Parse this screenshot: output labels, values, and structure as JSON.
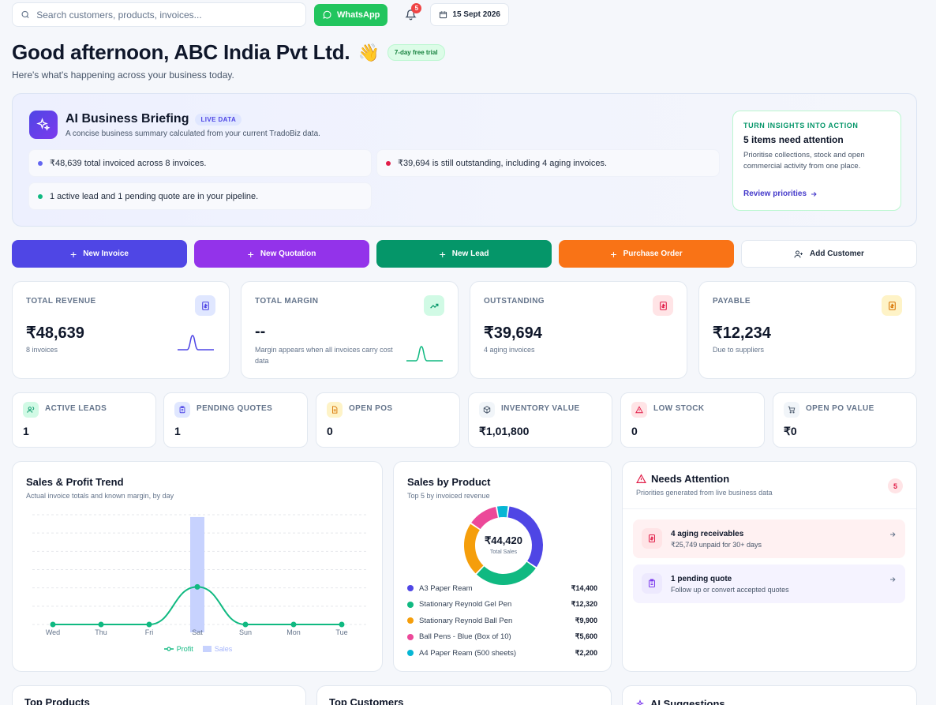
{
  "header": {
    "search_placeholder": "Search customers, products, invoices...",
    "whatsapp_label": "WhatsApp",
    "notification_count": "5",
    "date": "15 Sept 2026"
  },
  "greeting": {
    "title": "Good afternoon, ABC India Pvt Ltd.",
    "emoji": "👋",
    "trial_badge": "7-day free trial",
    "subtitle": "Here's what's happening across your business today."
  },
  "briefing": {
    "title": "AI Business Briefing",
    "badge": "LIVE DATA",
    "subtitle": "A concise business summary calculated from your current TradoBiz data.",
    "insights": [
      {
        "text": "₹48,639 total invoiced across 8 invoices.",
        "color": "#6366f1"
      },
      {
        "text": "₹39,694 is still outstanding, including 4 aging invoices.",
        "color": "#e11d48"
      },
      {
        "text": "1 active lead and 1 pending quote are in your pipeline.",
        "color": "#10b981"
      }
    ],
    "action": {
      "eyebrow": "TURN INSIGHTS INTO ACTION",
      "title": "5 items need attention",
      "text": "Prioritise collections, stock and open commercial activity from one place.",
      "link": "Review priorities"
    }
  },
  "quick_actions": [
    {
      "label": "New Invoice",
      "color": "#4f46e5"
    },
    {
      "label": "New Quotation",
      "color": "#9333ea"
    },
    {
      "label": "New Lead",
      "color": "#059669"
    },
    {
      "label": "Purchase Order",
      "color": "#f97316"
    },
    {
      "label": "Add Customer",
      "color": "#ffffff"
    }
  ],
  "kpis": [
    {
      "label": "TOTAL REVENUE",
      "value": "₹48,639",
      "sub": "8 invoices",
      "color": "#4f46e5",
      "icon_bg": "#e0e7ff",
      "icon": "invoice-icon"
    },
    {
      "label": "TOTAL MARGIN",
      "value": "--",
      "sub": "Margin appears when all invoices carry cost data",
      "color": "#10b981",
      "icon_bg": "#d1fae5",
      "icon": "trend-up-icon"
    },
    {
      "label": "OUTSTANDING",
      "value": "₹39,694",
      "sub": "4 aging invoices",
      "color": "#e11d48",
      "icon_bg": "#ffe4e6",
      "icon": "invoice-icon"
    },
    {
      "label": "PAYABLE",
      "value": "₹12,234",
      "sub": "Due to suppliers",
      "color": "#f59e0b",
      "icon_bg": "#fef3c7",
      "icon": "invoice-icon"
    }
  ],
  "stats": [
    {
      "label": "ACTIVE LEADS",
      "value": "1",
      "color": "#10b981",
      "icon_bg": "#d1fae5",
      "icon": "users-icon"
    },
    {
      "label": "PENDING QUOTES",
      "value": "1",
      "color": "#6366f1",
      "icon_bg": "#e0e7ff",
      "icon": "clipboard-icon"
    },
    {
      "label": "OPEN POS",
      "value": "0",
      "color": "#f59e0b",
      "icon_bg": "#fef3c7",
      "icon": "document-icon"
    },
    {
      "label": "INVENTORY VALUE",
      "value": "₹1,01,800",
      "color": "#475569",
      "icon_bg": "#f1f5f9",
      "icon": "box-icon"
    },
    {
      "label": "LOW STOCK",
      "value": "0",
      "color": "#e11d48",
      "icon_bg": "#ffe4e6",
      "icon": "warning-icon"
    },
    {
      "label": "OPEN PO VALUE",
      "value": "₹0",
      "color": "#475569",
      "icon_bg": "#f1f5f9",
      "icon": "cart-icon"
    }
  ],
  "trend": {
    "title": "Sales & Profit Trend",
    "subtitle": "Actual invoice totals and known margin, by day",
    "legend_profit": "Profit",
    "legend_sales": "Sales"
  },
  "products": {
    "title": "Sales by Product",
    "subtitle": "Top 5 by invoiced revenue",
    "total": "₹44,420",
    "total_label": "Total Sales"
  },
  "attention": {
    "title": "Needs Attention",
    "subtitle": "Priorities generated from live business data",
    "count": "5",
    "items": [
      {
        "title": "4 aging receivables",
        "sub": "₹25,749 unpaid for 30+ days",
        "bg": "#fff1f2",
        "icon_bg": "#ffe4e6",
        "color": "#e11d48",
        "icon": "invoice-icon"
      },
      {
        "title": "1 pending quote",
        "sub": "Follow up or convert accepted quotes",
        "bg": "#f5f3ff",
        "icon_bg": "#ede9fe",
        "color": "#7c3aed",
        "icon": "clipboard-icon"
      }
    ]
  },
  "bottom": {
    "top_products": "Top Products",
    "top_customers": "Top Customers",
    "ai_suggestions": "AI Suggestions"
  },
  "chart_data": [
    {
      "type": "bar",
      "title": "Sales & Profit Trend",
      "categories": [
        "Wed",
        "Thu",
        "Fri",
        "Sat",
        "Sun",
        "Mon",
        "Tue"
      ],
      "series": [
        {
          "name": "Sales",
          "values": [
            0,
            0,
            0,
            48639,
            0,
            0,
            0
          ],
          "color": "#c7d2fe"
        },
        {
          "name": "Profit",
          "values": [
            0,
            0,
            0,
            5000,
            0,
            0,
            0
          ],
          "color": "#10b981"
        }
      ],
      "legend": "bottom",
      "grid": true
    },
    {
      "type": "pie",
      "title": "Sales by Product",
      "categories": [
        "A3 Paper Ream",
        "Stationary Reynold Gel Pen",
        "Stationary Reynold Ball Pen",
        "Ball Pens - Blue (Box of 10)",
        "A4 Paper Ream (500 sheets)"
      ],
      "values": [
        14400,
        12320,
        9900,
        5600,
        2200
      ],
      "value_labels": [
        "₹14,400",
        "₹12,320",
        "₹9,900",
        "₹5,600",
        "₹2,200"
      ],
      "colors": [
        "#4f46e5",
        "#10b981",
        "#f59e0b",
        "#ec4899",
        "#06b6d4"
      ]
    }
  ]
}
